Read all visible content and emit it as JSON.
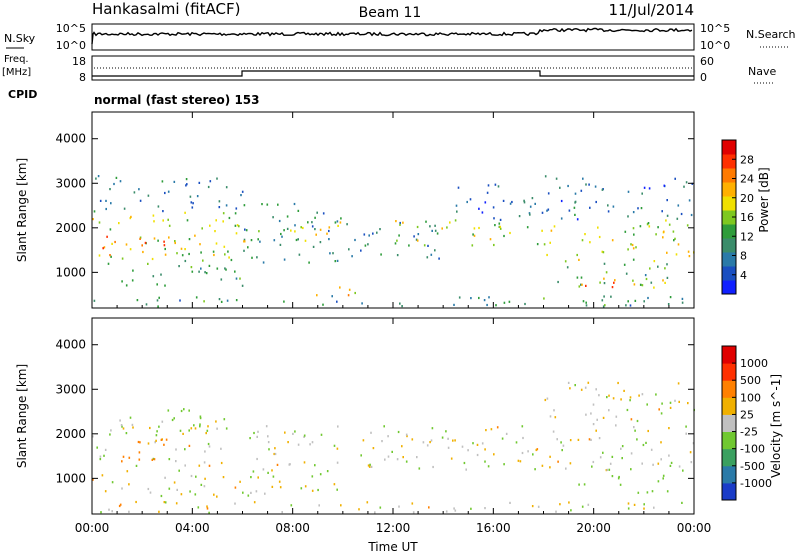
{
  "header": {
    "site": "Hankasalmi (fitACF)",
    "beam": "Beam 11",
    "date": "11/Jul/2014"
  },
  "top_panels": {
    "nsky": {
      "label": "N.Sky",
      "tick_top": "10^5",
      "tick_bottom": "10^0",
      "right_tick_top": "10^5",
      "right_tick_bottom": "10^0",
      "right_label": "N.Search"
    },
    "freq": {
      "label_line1": "Freq.",
      "label_line2": "[MHz]",
      "tick_top": "18",
      "tick_bottom": "8",
      "right_tick_top": "60",
      "right_tick_bottom": "0",
      "right_label": "Nave"
    },
    "cpid": {
      "label": "CPID",
      "text": "normal (fast stereo) 153"
    }
  },
  "chart_data": [
    {
      "type": "heatmap",
      "name": "power",
      "ylabel": "Slant Range [km]",
      "xlabel": "",
      "x_ticks": [
        "00:00",
        "04:00",
        "08:00",
        "12:00",
        "16:00",
        "20:00",
        "00:00"
      ],
      "x_range_hours": [
        0,
        24
      ],
      "y_ticks": [
        1000,
        2000,
        3000,
        4000
      ],
      "y_range": [
        200,
        4600
      ],
      "colorbar": {
        "label": "Power [dB]",
        "ticks": [
          4,
          8,
          12,
          16,
          20,
          24,
          28
        ],
        "range": [
          0,
          32
        ],
        "colors": [
          "#1020ff",
          "#1a4fc0",
          "#2a7aa8",
          "#3a8c6a",
          "#2e9c3a",
          "#7ec820",
          "#f0e000",
          "#ffb000",
          "#ff7a00",
          "#ff3000",
          "#e00000"
        ]
      },
      "scatter_bands": [
        {
          "t0": 0.0,
          "t1": 6.0,
          "r0": 1300,
          "r1": 2400,
          "level": 17
        },
        {
          "t0": 0.0,
          "t1": 3.5,
          "r0": 1400,
          "r1": 1900,
          "level": 25
        },
        {
          "t0": 0.5,
          "t1": 6.0,
          "r0": 700,
          "r1": 1300,
          "level": 13
        },
        {
          "t0": 0.0,
          "t1": 6.0,
          "r0": 2400,
          "r1": 3200,
          "level": 8
        },
        {
          "t0": 6.0,
          "t1": 10.0,
          "r0": 1200,
          "r1": 2600,
          "level": 10
        },
        {
          "t0": 6.0,
          "t1": 10.0,
          "r0": 1700,
          "r1": 2200,
          "level": 19
        },
        {
          "t0": 8.5,
          "t1": 10.5,
          "r0": 500,
          "r1": 800,
          "level": 22
        },
        {
          "t0": 10.0,
          "t1": 14.0,
          "r0": 1300,
          "r1": 2200,
          "level": 9
        },
        {
          "t0": 12.0,
          "t1": 18.0,
          "r0": 1600,
          "r1": 2200,
          "level": 17
        },
        {
          "t0": 14.0,
          "t1": 18.0,
          "r0": 2200,
          "r1": 3000,
          "level": 6
        },
        {
          "t0": 18.0,
          "t1": 24.0,
          "r0": 1300,
          "r1": 2200,
          "level": 18
        },
        {
          "t0": 18.0,
          "t1": 24.0,
          "r0": 2200,
          "r1": 3200,
          "level": 7
        },
        {
          "t0": 18.0,
          "t1": 23.0,
          "r0": 700,
          "r1": 1300,
          "level": 13
        },
        {
          "t0": 19.5,
          "t1": 23.5,
          "r0": 600,
          "r1": 900,
          "level": 24
        },
        {
          "t0": 0.0,
          "t1": 24.0,
          "r0": 250,
          "r1": 500,
          "level": 10
        }
      ]
    },
    {
      "type": "heatmap",
      "name": "velocity",
      "ylabel": "Slant Range [km]",
      "xlabel": "Time UT",
      "x_ticks": [
        "00:00",
        "04:00",
        "08:00",
        "12:00",
        "16:00",
        "20:00",
        "00:00"
      ],
      "x_range_hours": [
        0,
        24
      ],
      "y_ticks": [
        1000,
        2000,
        3000,
        4000
      ],
      "y_range": [
        200,
        4600
      ],
      "colorbar": {
        "label": "Velocity [m s^-1]",
        "ticks": [
          "1000",
          "500",
          "100",
          "25",
          "-25",
          "-100",
          "-500",
          "-1000"
        ],
        "colors": [
          "#1a3cc8",
          "#2a7aa8",
          "#3aa060",
          "#70c830",
          "#c0c0c0",
          "#f0b000",
          "#ff8000",
          "#ff3000",
          "#e00000"
        ]
      },
      "scatter_bands": [
        {
          "t0": 0.0,
          "t1": 6.0,
          "r0": 1300,
          "r1": 2400,
          "level": 0
        },
        {
          "t0": 1.0,
          "t1": 4.0,
          "r0": 1400,
          "r1": 1900,
          "level": -200
        },
        {
          "t0": 6.0,
          "t1": 18.0,
          "r0": 1200,
          "r1": 2200,
          "level": 0
        },
        {
          "t0": 3.0,
          "t1": 4.5,
          "r0": 2000,
          "r1": 2600,
          "level": 150
        },
        {
          "t0": 18.0,
          "t1": 24.0,
          "r0": 1200,
          "r1": 2300,
          "level": 0
        },
        {
          "t0": 19.0,
          "t1": 23.0,
          "r0": 700,
          "r1": 1100,
          "level": 150
        },
        {
          "t0": 18.0,
          "t1": 24.0,
          "r0": 2300,
          "r1": 3200,
          "level": 0
        },
        {
          "t0": 0.0,
          "t1": 10.0,
          "r0": 600,
          "r1": 1200,
          "level": 0
        },
        {
          "t0": 0.0,
          "t1": 24.0,
          "r0": 250,
          "r1": 500,
          "level": 0
        }
      ]
    }
  ]
}
